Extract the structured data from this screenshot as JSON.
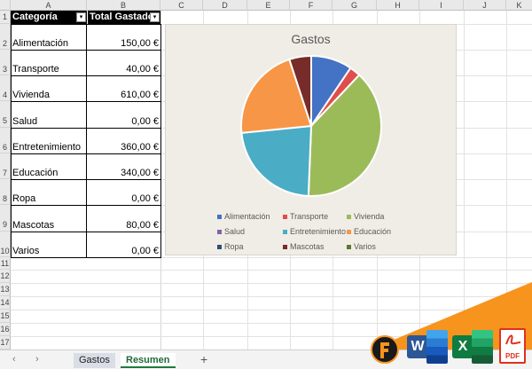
{
  "columns": [
    "A",
    "B",
    "C",
    "D",
    "E",
    "F",
    "G",
    "H",
    "I",
    "J",
    "K"
  ],
  "rows": [
    "1",
    "2",
    "3",
    "4",
    "5",
    "6",
    "7",
    "8",
    "9",
    "10",
    "11",
    "12",
    "13",
    "14",
    "15",
    "16",
    "17"
  ],
  "table": {
    "header": [
      "Categoría",
      "Total Gastado"
    ],
    "filter_icon": "▾",
    "items": [
      {
        "category": "Alimentación",
        "amount": "150,00 €"
      },
      {
        "category": "Transporte",
        "amount": "40,00 €"
      },
      {
        "category": "Vivienda",
        "amount": "610,00 €"
      },
      {
        "category": "Salud",
        "amount": "0,00 €"
      },
      {
        "category": "Entretenimiento",
        "amount": "360,00 €"
      },
      {
        "category": "Educación",
        "amount": "340,00 €"
      },
      {
        "category": "Ropa",
        "amount": "0,00 €"
      },
      {
        "category": "Mascotas",
        "amount": "80,00 €"
      },
      {
        "category": "Varios",
        "amount": "0,00 €"
      }
    ]
  },
  "chart_data": {
    "type": "pie",
    "title": "Gastos",
    "categories": [
      "Alimentación",
      "Transporte",
      "Vivienda",
      "Salud",
      "Entretenimiento",
      "Educación",
      "Ropa",
      "Mascotas",
      "Varios"
    ],
    "values": [
      150,
      40,
      610,
      0,
      360,
      340,
      0,
      80,
      0
    ],
    "colors": [
      "#4472c4",
      "#e04d4d",
      "#9bbb59",
      "#8064a2",
      "#4bacc6",
      "#f79646",
      "#2c4d75",
      "#772c2a",
      "#5f7530"
    ],
    "legend_position": "bottom"
  },
  "tabs": {
    "prev": "‹",
    "next": "›",
    "items": [
      "Gastos",
      "Resumen"
    ],
    "add": "+"
  },
  "logos": [
    "W",
    "X",
    "PDF"
  ]
}
